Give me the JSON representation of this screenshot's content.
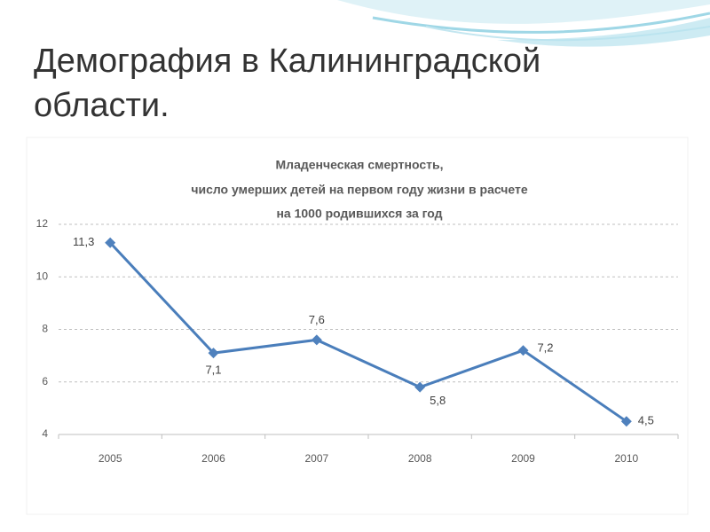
{
  "slide_title": "Демография в Калининградской области.",
  "chart_data": {
    "type": "line",
    "title": [
      "Младенческая смертность,",
      "число умерших детей на первом году жизни в расчете",
      "на 1000 родившихся за год"
    ],
    "categories": [
      "2005",
      "2006",
      "2007",
      "2008",
      "2009",
      "2010"
    ],
    "values": [
      11.3,
      7.1,
      7.6,
      5.8,
      7.2,
      4.5
    ],
    "value_labels": [
      "11,3",
      "7,1",
      "7,6",
      "5,8",
      "7,2",
      "4,5"
    ],
    "color": "#4a7ebb",
    "ylim": [
      4,
      12
    ],
    "yticks": [
      4,
      6,
      8,
      10,
      12
    ],
    "grid": true
  }
}
